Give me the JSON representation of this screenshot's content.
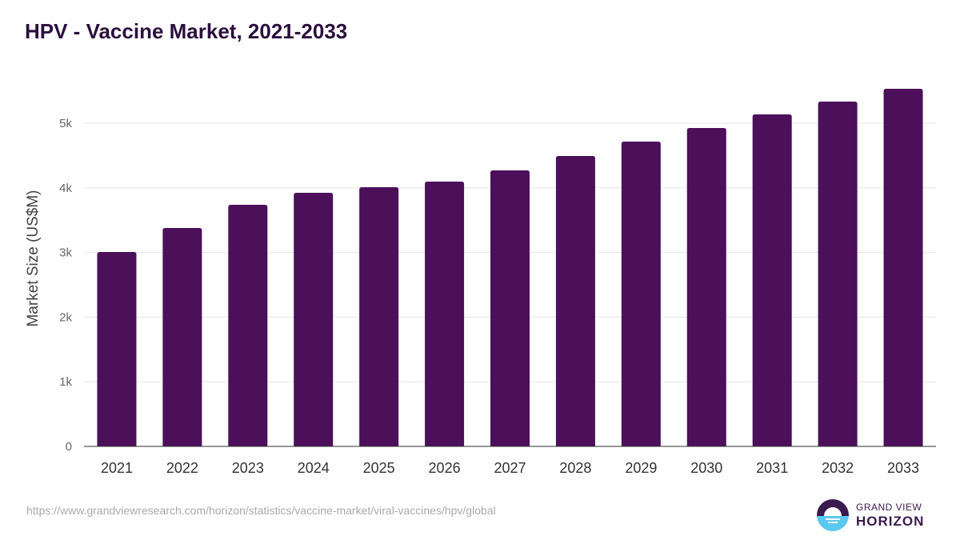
{
  "title": "HPV - Vaccine Market, 2021-2033",
  "source": "https://www.grandviewresearch.com/horizon/statistics/vaccine-market/viral-vaccines/hpv/global",
  "logo": {
    "line1": "GRAND VIEW",
    "line2": "HORIZON"
  },
  "colors": {
    "bar": "#4b1059",
    "title": "#2a0f3d"
  },
  "chart_data": {
    "type": "bar",
    "title": "HPV - Vaccine Market, 2021-2033",
    "xlabel": "",
    "ylabel": "Market Size (US$M)",
    "ylim": [
      0,
      5500
    ],
    "yticks": [
      0,
      1000,
      2000,
      3000,
      4000,
      5000
    ],
    "ytick_labels": [
      "0",
      "1k",
      "2k",
      "3k",
      "4k",
      "5k"
    ],
    "grid": true,
    "categories": [
      "2021",
      "2022",
      "2023",
      "2024",
      "2025",
      "2026",
      "2027",
      "2028",
      "2029",
      "2030",
      "2031",
      "2032",
      "2033"
    ],
    "values": [
      3007,
      3379,
      3738,
      3923,
      4010,
      4097,
      4270,
      4493,
      4715,
      4926,
      5136,
      5334,
      5532
    ]
  }
}
